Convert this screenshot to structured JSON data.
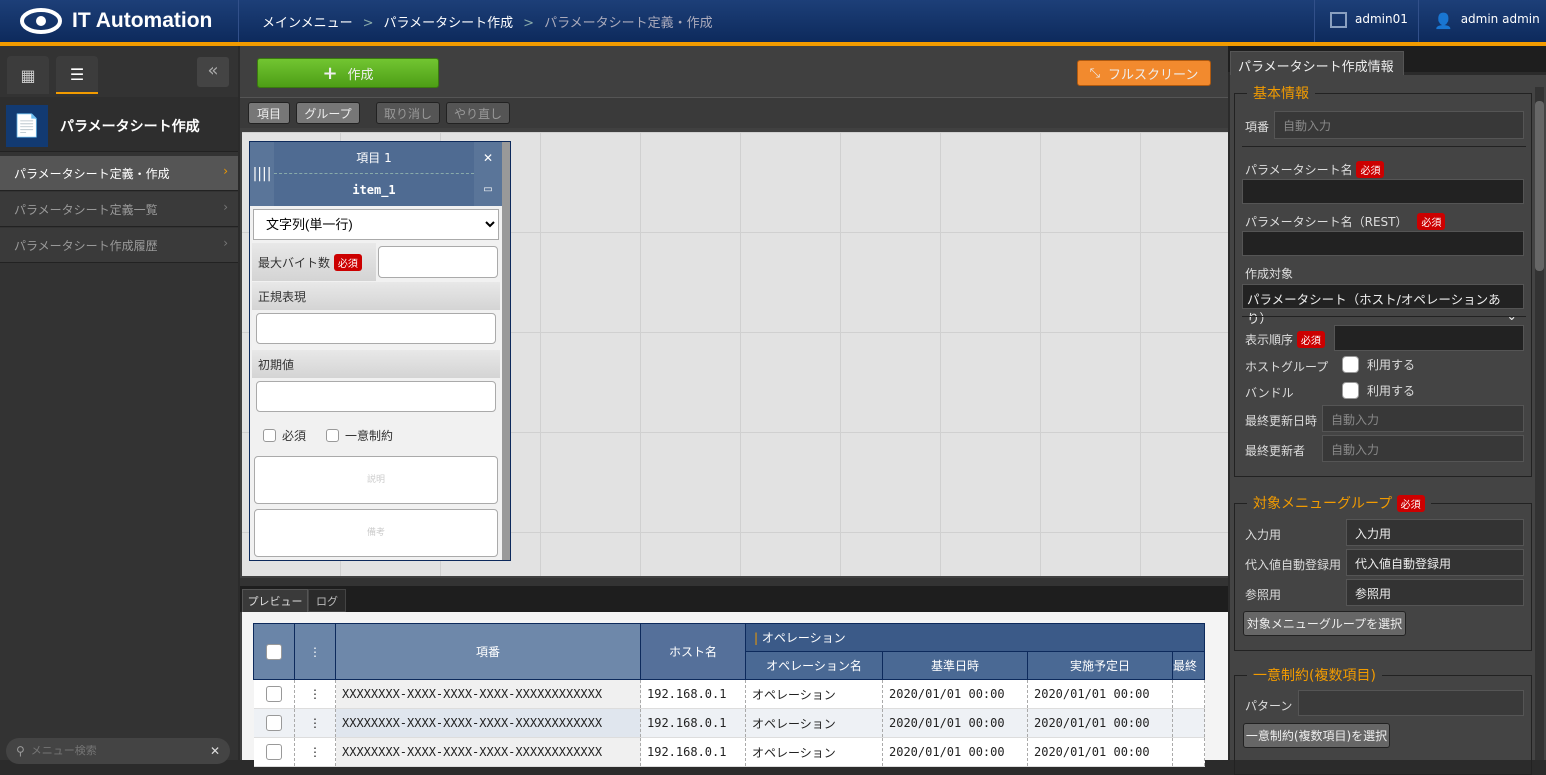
{
  "header": {
    "app_title": "IT Automation",
    "breadcrumb": [
      "メインメニュー",
      "パラメータシート作成",
      "パラメータシート定義・作成"
    ],
    "workspace": "admin01",
    "user": "admin admin"
  },
  "sidebar": {
    "title": "パラメータシート作成",
    "items": [
      {
        "label": "パラメータシート定義・作成",
        "active": true
      },
      {
        "label": "パラメータシート定義一覧"
      },
      {
        "label": "パラメータシート作成履歴"
      }
    ],
    "search_placeholder": "メニュー検索"
  },
  "toolbar": {
    "create": "作成",
    "fullscreen": "フルスクリーン",
    "item": "項目",
    "group": "グループ",
    "undo": "取り消し",
    "redo": "やり直し"
  },
  "item_card": {
    "title": "項目 1",
    "rest_name": "item_1",
    "type": "文字列(単一行)",
    "max_bytes": "最大バイト数",
    "required_badge": "必須",
    "regex": "正規表現",
    "default": "初期値",
    "required": "必須",
    "unique": "一意制約",
    "description": "説明",
    "remarks": "備考"
  },
  "bottom_tabs": [
    "プレビュー",
    "ログ"
  ],
  "preview": {
    "headers": {
      "id": "項番",
      "host": "ホスト名",
      "operation": "オペレーション",
      "op_name": "オペレーション名",
      "base_date": "基準日時",
      "scheduled": "実施予定日",
      "last": "最終"
    },
    "rows": [
      {
        "id": "XXXXXXXX-XXXX-XXXX-XXXX-XXXXXXXXXXXX",
        "host": "192.168.0.1",
        "op": "オペレーション",
        "base": "2020/01/01 00:00",
        "sched": "2020/01/01 00:00"
      },
      {
        "id": "XXXXXXXX-XXXX-XXXX-XXXX-XXXXXXXXXXXX",
        "host": "192.168.0.1",
        "op": "オペレーション",
        "base": "2020/01/01 00:00",
        "sched": "2020/01/01 00:00"
      },
      {
        "id": "XXXXXXXX-XXXX-XXXX-XXXX-XXXXXXXXXXXX",
        "host": "192.168.0.1",
        "op": "オペレーション",
        "base": "2020/01/01 00:00",
        "sched": "2020/01/01 00:00"
      }
    ]
  },
  "info": {
    "tab": "パラメータシート作成情報",
    "basic": "基本情報",
    "id_label": "項番",
    "auto": "自動入力",
    "name": "パラメータシート名",
    "name_rest": "パラメータシート名（REST）",
    "required": "必須",
    "target": "作成対象",
    "target_value": "パラメータシート（ホスト/オペレーションあり）",
    "order": "表示順序",
    "hostgroup": "ホストグループ",
    "bundle": "バンドル",
    "use": "利用する",
    "updated_at": "最終更新日時",
    "updated_by": "最終更新者",
    "menu_group": "対象メニューグループ",
    "input": "入力用",
    "subst": "代入値自動登録用",
    "ref": "参照用",
    "select_menu_group": "対象メニューグループを選択",
    "unique": "一意制約(複数項目)",
    "pattern": "パターン",
    "select_unique": "一意制約(複数項目)を選択"
  },
  "colors": {
    "accent": "#f29b00",
    "header": "#0d2a5c",
    "create": "#5aae1e",
    "fullscreen": "#f28a2e",
    "required": "#cc0000"
  }
}
